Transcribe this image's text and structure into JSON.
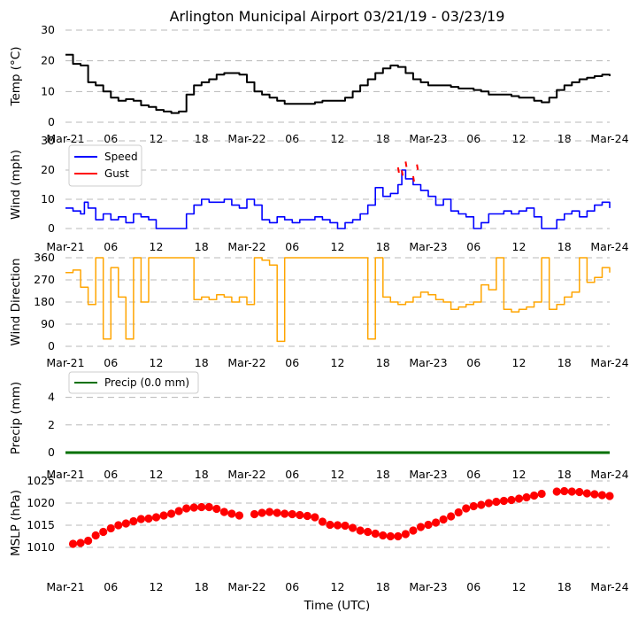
{
  "figure": {
    "title": "Arlington Municipal Airport 03/21/19 - 03/23/19",
    "xlabel": "Time (UTC)",
    "x_tick_labels": [
      "Mar-21",
      "06",
      "12",
      "18",
      "Mar-22",
      "06",
      "12",
      "18",
      "Mar-23",
      "06",
      "12",
      "18",
      "Mar-24"
    ]
  },
  "colors": {
    "temp": "#000000",
    "speed": "#0000ff",
    "gust": "#ff0000",
    "direction": "#ffa500",
    "precip": "#007000",
    "mslp": "#ff0000",
    "grid": "#b8b8b8"
  },
  "chart_data": [
    {
      "id": "temperature",
      "type": "line",
      "ylabel": "Temp (°C)",
      "ylim": [
        0,
        30
      ],
      "y_ticks": [
        0,
        10,
        20,
        30
      ],
      "x_unit": "hours since Mar-21 00 UTC",
      "xlim": [
        0,
        72
      ],
      "x": [
        0,
        1,
        2,
        3,
        4,
        5,
        6,
        7,
        8,
        9,
        10,
        11,
        12,
        13,
        14,
        15,
        16,
        17,
        18,
        19,
        20,
        21,
        22,
        23,
        24,
        25,
        26,
        27,
        28,
        29,
        30,
        31,
        32,
        33,
        34,
        35,
        36,
        37,
        38,
        39,
        40,
        41,
        42,
        43,
        44,
        45,
        46,
        47,
        48,
        49,
        50,
        51,
        52,
        53,
        54,
        55,
        56,
        57,
        58,
        59,
        60,
        61,
        62,
        63,
        64,
        65,
        66,
        67,
        68,
        69,
        70,
        71,
        72
      ],
      "values": [
        22,
        19,
        18.5,
        13,
        12,
        10,
        8,
        7,
        7.5,
        7,
        5.5,
        5,
        4,
        3.5,
        3,
        3.5,
        9,
        12,
        13,
        14,
        15.5,
        16,
        16,
        15.5,
        13,
        10,
        9,
        8,
        7,
        6,
        6,
        6,
        6,
        6.5,
        7,
        7,
        7,
        8,
        10,
        12,
        14,
        16,
        17.5,
        18.5,
        18,
        16,
        14,
        13,
        12,
        12,
        12,
        11.5,
        11,
        11,
        10.5,
        10,
        9,
        9,
        9,
        8.5,
        8,
        8,
        7,
        6.5,
        8,
        10.5,
        12,
        13,
        14,
        14.5,
        15,
        15.5,
        15
      ]
    },
    {
      "id": "wind",
      "type": "line",
      "ylabel": "Wind (mph)",
      "ylim": [
        0,
        30
      ],
      "y_ticks": [
        0,
        10,
        20,
        30
      ],
      "xlim": [
        0,
        72
      ],
      "legend": {
        "placement": "top-left",
        "entries": [
          "Speed",
          "Gust"
        ]
      },
      "series": [
        {
          "name": "Speed",
          "x": [
            0,
            1,
            2,
            2.5,
            3,
            4,
            5,
            6,
            7,
            8,
            9,
            10,
            11,
            12,
            13,
            14,
            15,
            16,
            17,
            18,
            19,
            20,
            21,
            22,
            23,
            24,
            25,
            26,
            27,
            28,
            29,
            30,
            31,
            32,
            33,
            34,
            35,
            36,
            37,
            38,
            39,
            40,
            41,
            42,
            43,
            44,
            44.5,
            45,
            46,
            47,
            48,
            49,
            50,
            51,
            52,
            53,
            54,
            55,
            56,
            57,
            58,
            59,
            60,
            61,
            62,
            63,
            64,
            65,
            66,
            67,
            68,
            69,
            70,
            71,
            72
          ],
          "values": [
            7,
            6,
            5,
            9,
            7,
            3,
            5,
            3,
            4,
            2,
            5,
            4,
            3,
            0,
            0,
            0,
            0,
            5,
            8,
            10,
            9,
            9,
            10,
            8,
            7,
            10,
            8,
            3,
            2,
            4,
            3,
            2,
            3,
            3,
            4,
            3,
            2,
            0,
            2,
            3,
            5,
            8,
            14,
            11,
            12,
            15,
            20,
            17,
            15,
            13,
            11,
            8,
            10,
            6,
            5,
            4,
            0,
            2,
            5,
            5,
            6,
            5,
            6,
            7,
            4,
            0,
            0,
            3,
            5,
            6,
            4,
            6,
            8,
            9,
            7
          ]
        },
        {
          "name": "Gust",
          "x": [
            44,
            44.5,
            45,
            46,
            46.5
          ],
          "values": [
            20,
            19,
            22,
            17,
            21
          ]
        }
      ]
    },
    {
      "id": "direction",
      "type": "line",
      "ylabel": "Wind Direction",
      "ylim": [
        0,
        360
      ],
      "y_ticks": [
        0,
        90,
        180,
        270,
        360
      ],
      "xlim": [
        0,
        72
      ],
      "x": [
        0,
        1,
        2,
        3,
        4,
        5,
        6,
        7,
        8,
        9,
        10,
        11,
        12,
        13,
        14,
        15,
        16,
        17,
        18,
        19,
        20,
        21,
        22,
        23,
        24,
        25,
        26,
        27,
        28,
        29,
        30,
        31,
        32,
        33,
        34,
        35,
        36,
        37,
        38,
        39,
        40,
        41,
        42,
        43,
        44,
        45,
        46,
        47,
        48,
        49,
        50,
        51,
        52,
        53,
        54,
        55,
        56,
        57,
        58,
        59,
        60,
        61,
        62,
        63,
        64,
        65,
        66,
        67,
        68,
        69,
        70,
        71,
        72
      ],
      "values": [
        300,
        310,
        240,
        170,
        360,
        30,
        320,
        200,
        30,
        360,
        180,
        360,
        360,
        360,
        360,
        360,
        360,
        190,
        200,
        190,
        210,
        200,
        180,
        200,
        170,
        360,
        350,
        330,
        20,
        360,
        360,
        360,
        360,
        360,
        360,
        360,
        360,
        360,
        360,
        360,
        30,
        360,
        200,
        180,
        170,
        180,
        200,
        220,
        210,
        190,
        180,
        150,
        160,
        170,
        180,
        250,
        230,
        360,
        150,
        140,
        150,
        160,
        180,
        360,
        150,
        170,
        200,
        220,
        360,
        260,
        280,
        320,
        300
      ]
    },
    {
      "id": "precip",
      "type": "line",
      "ylabel": "Precip (mm)",
      "ylim": [
        0,
        5
      ],
      "y_ticks": [
        0,
        2,
        4
      ],
      "xlim": [
        0,
        72
      ],
      "legend": {
        "placement": "top-left",
        "entries": [
          "Precip (0.0 mm)"
        ]
      },
      "x": [
        0,
        72
      ],
      "values": [
        0,
        0
      ]
    },
    {
      "id": "mslp",
      "type": "scatter",
      "ylabel": "MSLP (hPa)",
      "ylim": [
        1006,
        1025
      ],
      "y_ticks": [
        1010,
        1015,
        1020,
        1025
      ],
      "xlim": [
        0,
        72
      ],
      "x": [
        1,
        2,
        3,
        4,
        5,
        6,
        7,
        8,
        9,
        10,
        11,
        12,
        13,
        14,
        15,
        16,
        17,
        18,
        19,
        20,
        21,
        22,
        23,
        24,
        25,
        26,
        27,
        28,
        29,
        30,
        31,
        32,
        33,
        34,
        35,
        36,
        37,
        38,
        39,
        40,
        41,
        42,
        43,
        44,
        45,
        46,
        47,
        48,
        49,
        50,
        51,
        52,
        53,
        54,
        55,
        56,
        57,
        58,
        59,
        60,
        61,
        62,
        63,
        64,
        65,
        66,
        67,
        68,
        69,
        70,
        71,
        72
      ],
      "values": [
        1010.8,
        1011,
        1011.5,
        1012.7,
        1013.5,
        1014.3,
        1015,
        1015.4,
        1015.9,
        1016.4,
        1016.5,
        1016.8,
        1017.2,
        1017.6,
        1018.2,
        1018.8,
        1019,
        1019.1,
        1019.1,
        1018.7,
        1018,
        1017.6,
        1017.2,
        null,
        1017.5,
        1017.8,
        1018,
        1017.8,
        1017.6,
        1017.5,
        1017.3,
        1017.1,
        1016.8,
        1015.8,
        1015.1,
        1015,
        1014.9,
        1014.4,
        1013.8,
        1013.5,
        1013.1,
        1012.7,
        1012.5,
        1012.5,
        1013,
        1013.8,
        1014.6,
        1015.1,
        1015.6,
        1016.3,
        1017,
        1017.9,
        1018.8,
        1019.3,
        1019.6,
        1020,
        1020.3,
        1020.5,
        1020.7,
        1021,
        1021.3,
        1021.7,
        1022.1,
        null,
        1022.6,
        1022.7,
        1022.6,
        1022.5,
        1022.2,
        1022,
        1021.8,
        1021.6
      ]
    }
  ]
}
